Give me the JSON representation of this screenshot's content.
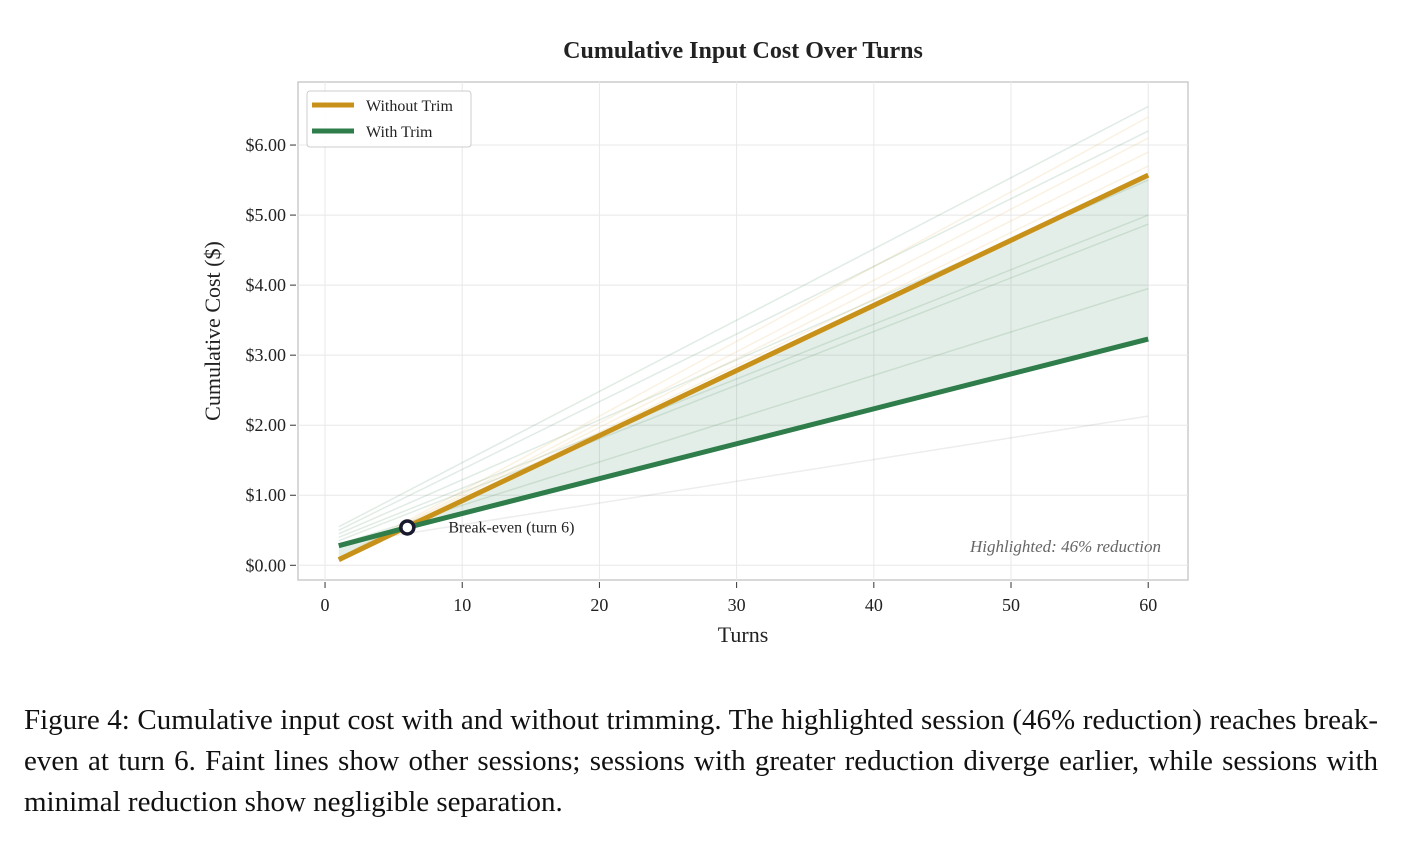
{
  "chart_data": {
    "type": "line",
    "title": "Cumulative Input Cost Over Turns",
    "xlabel": "Turns",
    "ylabel": "Cumulative Cost ($)",
    "x": [
      1,
      6,
      60
    ],
    "series": [
      {
        "name": "Without Trim",
        "color": "#c8921a",
        "values": [
          0.08,
          0.55,
          5.57
        ]
      },
      {
        "name": "With Trim",
        "color": "#2e7d4a",
        "values": [
          0.28,
          0.54,
          3.23
        ]
      }
    ],
    "background_sessions": {
      "x": [
        1,
        60
      ],
      "opacity": 0.15,
      "lines": [
        {
          "color": "#2e7d4a",
          "values": [
            0.55,
            6.55
          ]
        },
        {
          "color": "#2e7d4a",
          "values": [
            0.5,
            6.2
          ]
        },
        {
          "color": "#2e7d4a",
          "values": [
            0.45,
            5.5
          ]
        },
        {
          "color": "#2e7d4a",
          "values": [
            0.4,
            5.0
          ]
        },
        {
          "color": "#2e7d4a",
          "values": [
            0.35,
            4.87
          ]
        },
        {
          "color": "#2e7d4a",
          "values": [
            0.3,
            3.95
          ]
        },
        {
          "color": "#888888",
          "values": [
            0.3,
            2.13
          ]
        },
        {
          "color": "#e0a83a",
          "values": [
            0.1,
            5.9
          ]
        },
        {
          "color": "#e0a83a",
          "values": [
            0.1,
            6.4
          ]
        },
        {
          "color": "#e0a83a",
          "values": [
            0.1,
            5.7
          ]
        },
        {
          "color": "#e0a83a",
          "values": [
            0.1,
            6.1
          ]
        }
      ]
    },
    "fill_between": {
      "color": "#2e7d4a",
      "opacity": 0.13
    },
    "break_even": {
      "x": 6,
      "y": 0.54,
      "label": "Break-even (turn 6)"
    },
    "annotation": "Highlighted: 46% reduction",
    "xlim": [
      -1.97,
      62.9
    ],
    "ylim": [
      -0.21,
      6.9
    ],
    "xticks": [
      0,
      10,
      20,
      30,
      40,
      50,
      60
    ],
    "yticks": [
      {
        "value": 0,
        "label": "$0.00"
      },
      {
        "value": 1,
        "label": "$1.00"
      },
      {
        "value": 2,
        "label": "$2.00"
      },
      {
        "value": 3,
        "label": "$3.00"
      },
      {
        "value": 4,
        "label": "$4.00"
      },
      {
        "value": 5,
        "label": "$5.00"
      },
      {
        "value": 6,
        "label": "$6.00"
      }
    ],
    "grid": true,
    "legend": "upper left"
  },
  "caption": "Figure 4: Cumulative input cost with and without trimming. The highlighted session (46% reduction) reaches break-even at turn 6. Faint lines show other sessions; sessions with greater reduction diverge earlier, while sessions with minimal reduction show negligible separation."
}
